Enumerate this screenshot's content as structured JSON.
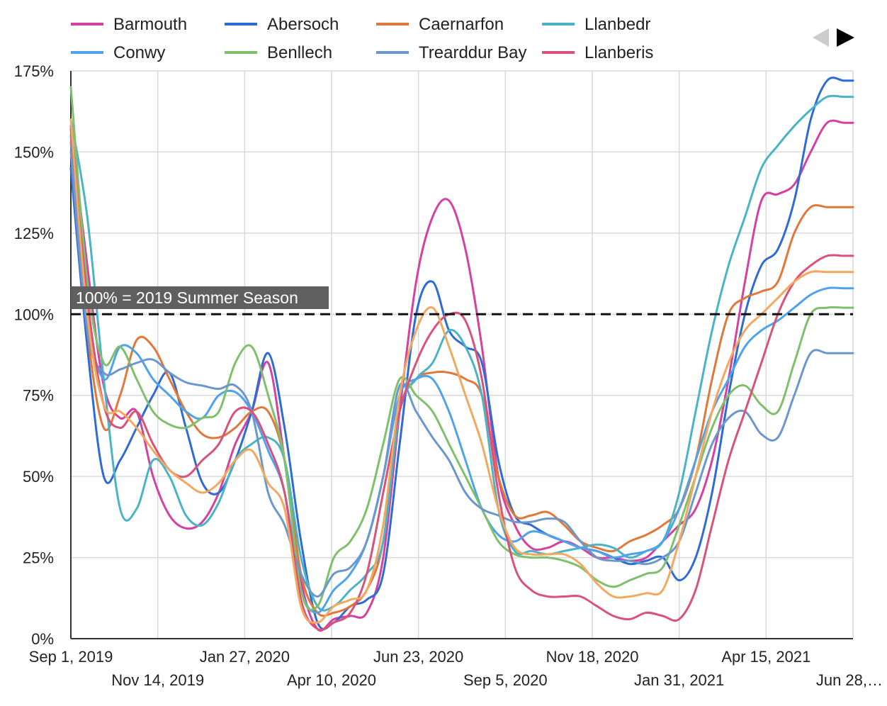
{
  "chart_data": {
    "type": "line",
    "title": "",
    "xlabel": "",
    "ylabel": "",
    "y_unit": "%",
    "ylim": [
      0,
      175
    ],
    "y_ticks": [
      0,
      25,
      50,
      75,
      100,
      125,
      150,
      175
    ],
    "y_tick_labels": [
      "0%",
      "25%",
      "50%",
      "75%",
      "100%",
      "125%",
      "150%",
      "175%"
    ],
    "xlim": [
      "2019-09-01",
      "2021-06-28"
    ],
    "x_ticks": [
      "2019-09-01",
      "2019-11-14",
      "2020-01-27",
      "2020-04-10",
      "2020-06-23",
      "2020-09-05",
      "2020-11-18",
      "2021-01-31",
      "2021-04-15",
      "2021-06-28"
    ],
    "x_tick_labels": [
      "Sep 1, 2019",
      "Nov 14, 2019",
      "Jan 27, 2020",
      "Apr 10, 2020",
      "Jun 23, 2020",
      "Sep 5, 2020",
      "Nov 18, 2020",
      "Jan 31, 2021",
      "Apr 15, 2021",
      "Jun 28,…"
    ],
    "grid": true,
    "legend_position": "top",
    "reference_line": {
      "value": 100,
      "label": "100% = 2019 Summer Season",
      "style": "dashed",
      "color": "#111111"
    },
    "legend_pager": {
      "prev_icon": "triangle-left-icon",
      "next_icon": "triangle-right-icon"
    },
    "x": [
      "2019-09-01",
      "2019-09-15",
      "2019-09-29",
      "2019-10-13",
      "2019-10-27",
      "2019-11-10",
      "2019-11-24",
      "2019-12-08",
      "2019-12-22",
      "2020-01-05",
      "2020-01-19",
      "2020-02-02",
      "2020-02-16",
      "2020-03-01",
      "2020-03-15",
      "2020-03-29",
      "2020-04-12",
      "2020-04-26",
      "2020-05-10",
      "2020-05-24",
      "2020-06-07",
      "2020-06-21",
      "2020-07-05",
      "2020-07-19",
      "2020-08-02",
      "2020-08-16",
      "2020-08-30",
      "2020-09-13",
      "2020-09-27",
      "2020-10-11",
      "2020-10-25",
      "2020-11-08",
      "2020-11-22",
      "2020-12-06",
      "2020-12-20",
      "2021-01-03",
      "2021-01-17",
      "2021-01-31",
      "2021-02-14",
      "2021-02-28",
      "2021-03-14",
      "2021-03-28",
      "2021-04-11",
      "2021-04-25",
      "2021-05-09",
      "2021-05-23",
      "2021-06-06",
      "2021-06-20",
      "2021-06-28"
    ],
    "series": [
      {
        "name": "Barmouth",
        "color": "#d6409f",
        "values": [
          158,
          115,
          78,
          68,
          70,
          50,
          38,
          34,
          36,
          45,
          60,
          70,
          85,
          55,
          18,
          3,
          6,
          7,
          8,
          25,
          70,
          110,
          130,
          135,
          120,
          90,
          50,
          35,
          28,
          28,
          30,
          28,
          25,
          25,
          24,
          25,
          30,
          35,
          40,
          55,
          80,
          110,
          135,
          137,
          140,
          150,
          159,
          159,
          159
        ]
      },
      {
        "name": "Abersoch",
        "color": "#2f6bd6",
        "values": [
          145,
          90,
          50,
          55,
          65,
          75,
          82,
          65,
          48,
          45,
          55,
          70,
          88,
          65,
          30,
          5,
          5,
          10,
          12,
          20,
          60,
          100,
          110,
          95,
          90,
          85,
          55,
          38,
          35,
          32,
          30,
          28,
          27,
          25,
          23,
          24,
          25,
          18,
          25,
          45,
          75,
          100,
          115,
          120,
          135,
          160,
          172,
          172,
          172
        ]
      },
      {
        "name": "Caernarfon",
        "color": "#e2773a",
        "values": [
          153,
          95,
          65,
          75,
          92,
          90,
          80,
          70,
          63,
          62,
          65,
          70,
          70,
          55,
          20,
          8,
          8,
          10,
          15,
          30,
          70,
          80,
          82,
          82,
          80,
          75,
          50,
          38,
          38,
          39,
          35,
          30,
          28,
          27,
          30,
          32,
          35,
          40,
          55,
          80,
          100,
          105,
          107,
          110,
          125,
          133,
          133,
          133,
          133
        ]
      },
      {
        "name": "Llanbedr",
        "color": "#4ab4c6",
        "values": [
          160,
          130,
          80,
          40,
          40,
          55,
          50,
          38,
          35,
          42,
          55,
          60,
          62,
          55,
          25,
          10,
          10,
          15,
          20,
          30,
          70,
          80,
          85,
          95,
          90,
          75,
          40,
          27,
          27,
          26,
          27,
          28,
          29,
          28,
          25,
          27,
          30,
          45,
          70,
          95,
          115,
          130,
          145,
          152,
          158,
          163,
          167,
          167,
          167
        ]
      },
      {
        "name": "Conwy",
        "color": "#4fa2ec",
        "values": [
          155,
          100,
          80,
          90,
          88,
          80,
          75,
          70,
          68,
          75,
          76,
          70,
          58,
          45,
          15,
          8,
          15,
          20,
          30,
          50,
          75,
          80,
          80,
          70,
          55,
          40,
          32,
          30,
          33,
          32,
          30,
          28,
          27,
          25,
          26,
          27,
          30,
          40,
          55,
          70,
          80,
          90,
          95,
          98,
          102,
          106,
          108,
          108,
          108
        ]
      },
      {
        "name": "Benllech",
        "color": "#7fc06c",
        "values": [
          170,
          110,
          85,
          90,
          80,
          70,
          66,
          65,
          68,
          70,
          85,
          90,
          75,
          55,
          15,
          10,
          25,
          30,
          40,
          60,
          80,
          75,
          70,
          60,
          50,
          40,
          30,
          26,
          25,
          25,
          24,
          22,
          18,
          16,
          18,
          20,
          22,
          35,
          50,
          65,
          75,
          78,
          72,
          70,
          85,
          100,
          102,
          102,
          102
        ]
      },
      {
        "name": "Trearddur Bay",
        "color": "#6b97cc",
        "values": [
          150,
          95,
          82,
          83,
          85,
          86,
          82,
          79,
          78,
          77,
          78,
          70,
          45,
          35,
          20,
          13,
          20,
          22,
          30,
          50,
          78,
          70,
          62,
          55,
          45,
          40,
          38,
          36,
          36,
          37,
          36,
          30,
          25,
          24,
          24,
          23,
          25,
          30,
          45,
          60,
          68,
          70,
          63,
          62,
          75,
          88,
          88,
          88,
          88
        ]
      },
      {
        "name": "Llanberis",
        "color": "#d9527a",
        "values": [
          157,
          105,
          72,
          65,
          70,
          60,
          52,
          50,
          55,
          60,
          70,
          70,
          60,
          45,
          12,
          3,
          5,
          8,
          20,
          45,
          70,
          85,
          95,
          100,
          98,
          80,
          45,
          22,
          15,
          13,
          13,
          13,
          10,
          7,
          6,
          8,
          7,
          6,
          15,
          35,
          55,
          70,
          85,
          100,
          110,
          115,
          118,
          118,
          118
        ]
      },
      {
        "name": "",
        "color": "#f2a85e",
        "values": [
          160,
          100,
          72,
          70,
          65,
          58,
          52,
          48,
          45,
          48,
          55,
          58,
          48,
          40,
          10,
          5,
          10,
          12,
          15,
          35,
          75,
          95,
          102,
          90,
          75,
          60,
          40,
          28,
          26,
          26,
          26,
          23,
          17,
          13,
          13,
          14,
          15,
          30,
          50,
          70,
          85,
          95,
          100,
          105,
          110,
          113,
          113,
          113,
          113
        ]
      }
    ]
  }
}
